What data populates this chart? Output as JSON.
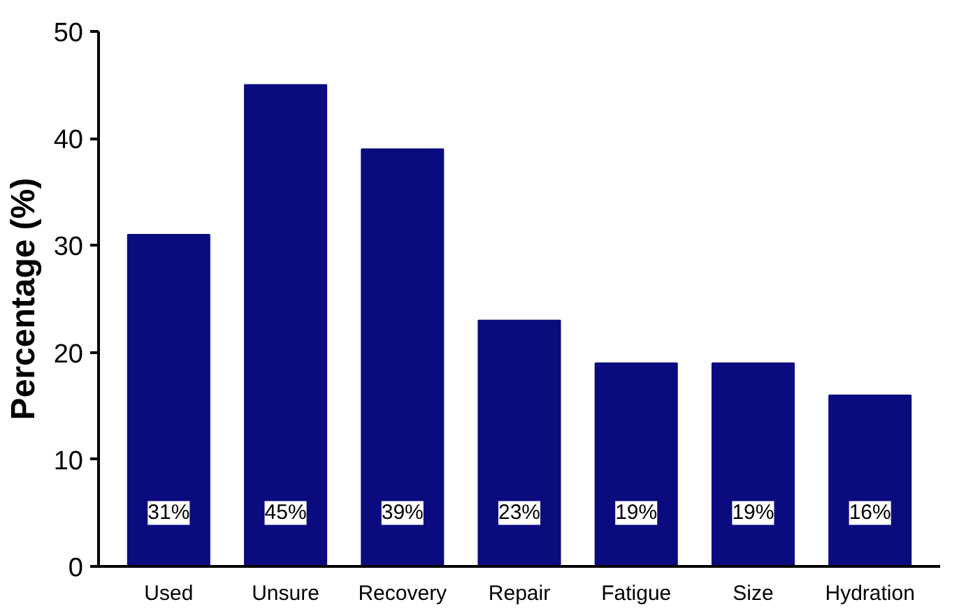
{
  "chart_data": {
    "type": "bar",
    "ylabel": "Percentage (%)",
    "categories": [
      "Used",
      "Unsure",
      "Recovery",
      "Repair",
      "Fatigue",
      "Size",
      "Hydration"
    ],
    "values": [
      31,
      45,
      39,
      23,
      19,
      19,
      16
    ],
    "value_labels": [
      "31%",
      "45%",
      "39%",
      "23%",
      "19%",
      "19%",
      "16%"
    ],
    "color": "#0b0b80",
    "ylim": [
      0,
      50
    ],
    "yticks": [
      0,
      10,
      20,
      30,
      40,
      50
    ],
    "grid": false
  }
}
